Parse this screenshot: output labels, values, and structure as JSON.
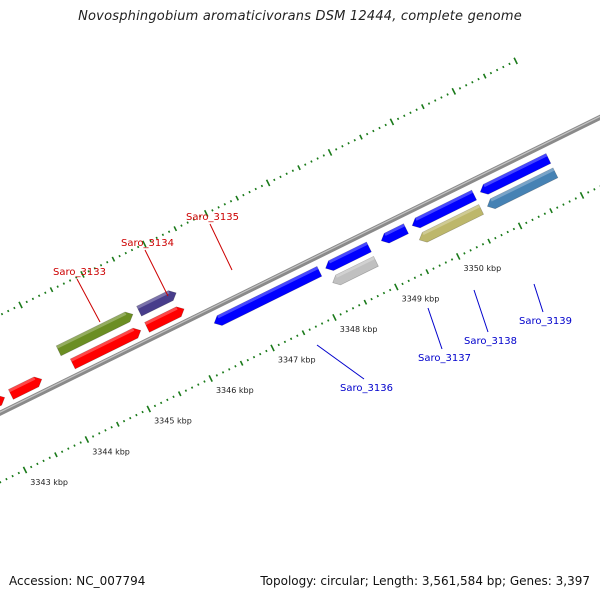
{
  "title": "Novosphingobium aromaticivorans DSM 12444, complete genome",
  "footer": {
    "accession": "Accession: NC_007794",
    "summary": "Topology: circular; Length: 3,561,584 bp; Genes: 3,397"
  },
  "colors": {
    "forward_label": "#cc0000",
    "reverse_label": "#0000cc",
    "tick": "#1a7a1a",
    "backbone": "#8a8a8a"
  },
  "ticks": [
    {
      "pos": 3343,
      "label": "3343 kbp"
    },
    {
      "pos": 3344,
      "label": "3344 kbp"
    },
    {
      "pos": 3345,
      "label": "3345 kbp"
    },
    {
      "pos": 3346,
      "label": "3346 kbp"
    },
    {
      "pos": 3347,
      "label": "3347 kbp"
    },
    {
      "pos": 3348,
      "label": "3348 kbp"
    },
    {
      "pos": 3349,
      "label": "3349 kbp"
    },
    {
      "pos": 3350,
      "label": "3350 kbp"
    }
  ],
  "genes": [
    {
      "label": "",
      "strand": "+",
      "color": "#ff0000",
      "start": 3341.6,
      "end": 3343.2
    },
    {
      "label": "",
      "strand": "+",
      "color": "#ff0000",
      "start": 3343.3,
      "end": 3343.8
    },
    {
      "label": "Saro_3133",
      "strand": "+",
      "color": "#ff0000",
      "start": 3344.3,
      "end": 3345.4
    },
    {
      "label": "Saro_3134",
      "strand": "+",
      "color": "#6b8e23",
      "start": 3344.2,
      "end": 3345.4
    },
    {
      "label": "Saro_3135",
      "strand": "+",
      "color": "#483d8b",
      "start": 3345.5,
      "end": 3346.1
    },
    {
      "label": "",
      "strand": "+",
      "color": "#ff0000",
      "start": 3345.5,
      "end": 3346.1
    },
    {
      "label": "Saro_3136",
      "strand": "-",
      "color": "#0000ff",
      "start": 3346.4,
      "end": 3348.1
    },
    {
      "label": "",
      "strand": "-",
      "color": "#0000ff",
      "start": 3348.2,
      "end": 3348.9
    },
    {
      "label": "Saro_3137",
      "strand": "-",
      "color": "#c0c0c0",
      "start": 3348.2,
      "end": 3348.9
    },
    {
      "label": "",
      "strand": "-",
      "color": "#0000ff",
      "start": 3349.1,
      "end": 3349.5
    },
    {
      "label": "Saro_3138",
      "strand": "-",
      "color": "#0000ff",
      "start": 3349.6,
      "end": 3350.6
    },
    {
      "label": "Saro_3139",
      "strand": "-",
      "color": "#bdb76b",
      "start": 3349.6,
      "end": 3350.6
    },
    {
      "label": "",
      "strand": "-",
      "color": "#0000ff",
      "start": 3350.7,
      "end": 3351.8
    },
    {
      "label": "",
      "strand": "-",
      "color": "#4682b4",
      "start": 3350.7,
      "end": 3351.8
    }
  ]
}
